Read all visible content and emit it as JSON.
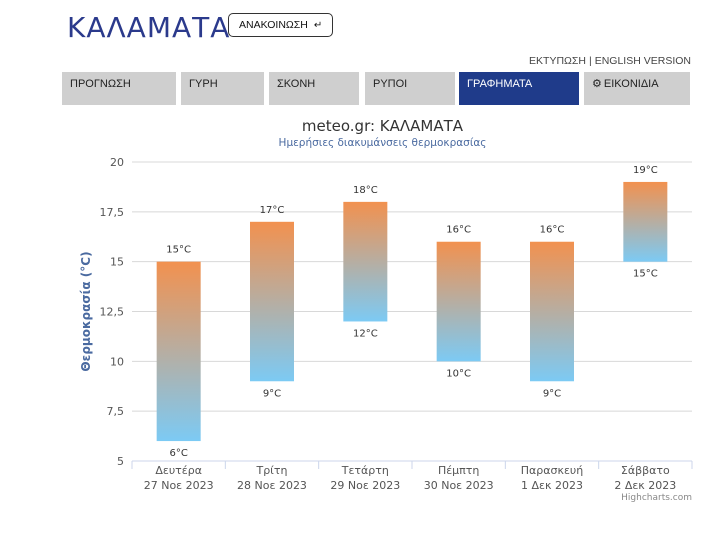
{
  "header": {
    "city": "ΚΑΛΑΜΑΤΑ",
    "announce_label": "ΑΝΑΚΟΙΝΩΣΗ",
    "announce_icon": "return-arrow-icon"
  },
  "top_links": {
    "print": "ΕΚΤΥΠΩΣΗ",
    "separator": "|",
    "english": "ENGLISH VERSION"
  },
  "tabs": [
    {
      "label": "ΠΡΟΓΝΩΣΗ",
      "active": false
    },
    {
      "label": "ΓΥΡΗ",
      "active": false
    },
    {
      "label": "ΣΚΟΝΗ",
      "active": false
    },
    {
      "label": "ΡΥΠΟΙ",
      "active": false
    },
    {
      "label": "ΓΡΑΦΗΜΑΤΑ",
      "active": true
    },
    {
      "label": "ΕΙΚΟΝΙΔΙΑ",
      "active": false,
      "icon": "gear-icon"
    }
  ],
  "colors": {
    "brand": "#2b3a8c",
    "active_tab": "#1f3b8a",
    "bar_top": "#f2914f",
    "bar_bottom": "#7ccaf4",
    "axis_label": "#4a6aa0"
  },
  "chart_data": {
    "type": "bar",
    "subtype": "columnrange",
    "title": "meteo.gr: ΚΑΛΑΜΑΤΑ",
    "subtitle": "Ημερήσιες διακυμάνσεις θερμοκρασίας",
    "ylabel": "Θερμοκρασία (°C)",
    "xlabel": "",
    "ylim": [
      5,
      20
    ],
    "yticks": [
      "5",
      "7,5",
      "10",
      "12,5",
      "15",
      "17,5",
      "20"
    ],
    "ytick_values": [
      5,
      7.5,
      10,
      12.5,
      15,
      17.5,
      20
    ],
    "grid": true,
    "categories": [
      {
        "day": "Δευτέρα",
        "date": "27 Νοε 2023"
      },
      {
        "day": "Τρίτη",
        "date": "28 Νοε 2023"
      },
      {
        "day": "Τετάρτη",
        "date": "29 Νοε 2023"
      },
      {
        "day": "Πέμπτη",
        "date": "30 Νοε 2023"
      },
      {
        "day": "Παρασκευή",
        "date": "1 Δεκ 2023"
      },
      {
        "day": "Σάββατο",
        "date": "2 Δεκ 2023"
      }
    ],
    "low": [
      6,
      9,
      12,
      10,
      9,
      15
    ],
    "high": [
      15,
      17,
      18,
      16,
      16,
      19
    ],
    "low_labels": [
      "6°C",
      "9°C",
      "12°C",
      "10°C",
      "9°C",
      "15°C"
    ],
    "high_labels": [
      "15°C",
      "17°C",
      "18°C",
      "16°C",
      "16°C",
      "19°C"
    ]
  },
  "credits": "Highcharts.com"
}
